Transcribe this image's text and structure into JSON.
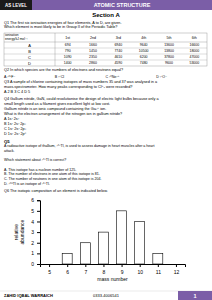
{
  "chart_data": {
    "type": "bar",
    "x": [
      6,
      7,
      8,
      9,
      10,
      11
    ],
    "values": [
      1,
      2,
      3,
      5,
      4,
      1
    ],
    "color": "#ffffff",
    "x_label": "mass number",
    "y_label": "relative\nabundance",
    "xlim": [
      4.5,
      12.5
    ],
    "ylim": [
      0,
      6
    ],
    "xticks": [
      5,
      6,
      7,
      8,
      9,
      10,
      11,
      12
    ],
    "yticks": [
      0,
      1,
      2,
      3,
      4,
      5,
      6
    ],
    "grid": false
  },
  "page": {
    "header_left": "AS LEVEL",
    "header_right": "ATOMIC  STRUCTURE",
    "header_bg": "#7B5EA7",
    "header_text_color": "#ffffff",
    "header_left_bg": "#1a1a1a",
    "section_title": "Section A",
    "q1_text": "Q1  The first six ionisation energies of four elements, A to D, are given.\nWhich element is most likely to be in Group II of the Periodic Table?",
    "table_headers": [
      "ionisation\nenergy/kJ mol⁻¹",
      "1st",
      "2nd",
      "3rd",
      "4th",
      "5th",
      "6th"
    ],
    "table_rows": [
      [
        "A",
        "694",
        "1660",
        "6940",
        "9640",
        "13600",
        "16600"
      ],
      [
        "B",
        "790",
        "1450",
        "7740",
        "10500",
        "13800",
        "18000"
      ],
      [
        "C",
        "1090",
        "2350",
        "4610",
        "6200",
        "37800",
        "47000"
      ],
      [
        "D",
        "1400",
        "2860",
        "4590",
        "7480",
        "9600",
        "53000"
      ]
    ],
    "q2_text": "Q2  In which species are the numbers of electrons and neutrons equal?",
    "q2_options": [
      "A  ²⁰⁹F⁻",
      "B  ¹⁷Cl",
      "C  ²⁰Ne²⁺",
      "D  ¹⁷O⁻"
    ],
    "q3_text": "Q3  A sample of chlorine containing isotopes of mass numbers 35 and 37 was analysed in a\nmass-spectrometer. How many peaks corresponding to Cl⁺₂ were recorded?\nA 2          B 3          C 4          D 5",
    "q4_text": "Q4  Gallium nitride, GaN, could revolutionise the design of electric light bulbs because only a\nsmall length used as a filament gives excellent light at low cost.\nGallium nitride is an ionic compound containing the Ga³⁺ ion.\nWhat is the electron arrangement of the nitrogen ion in gallium nitride?\nA  1s² 2s²\nB  1s² 2s² 2p³\nC  1s² 2s² 2p³\nD  1s² 2s² 2p⁶",
    "q5_label": "Q5",
    "q5_text": "A radioactive isotope of thallium, ²⁰⁷Tl, is used to assess damage in heart muscles after a heart\nattack.\n\nWhich statement about ²⁰⁷Tl is correct?\n\nA.   This isotope has a nucleon number of 125.\nB.   The number of electrons in one atom of this isotope is 81.\nC.   The number of neutrons in one atom of this isotope is 204.\nD.   ²⁰⁸Tl is an isotope of ²⁰⁷Tl.",
    "q6_text": "Q6  The isotopic composition of an element is indicated below.",
    "footer_left": "ZAHID IQBAL WARRAICH",
    "footer_mid": "0333-4006541",
    "footer_right": "1",
    "footer_right_bg": "#7B5EA7",
    "bg_color": "#ffffff",
    "text_color": "#000000"
  }
}
